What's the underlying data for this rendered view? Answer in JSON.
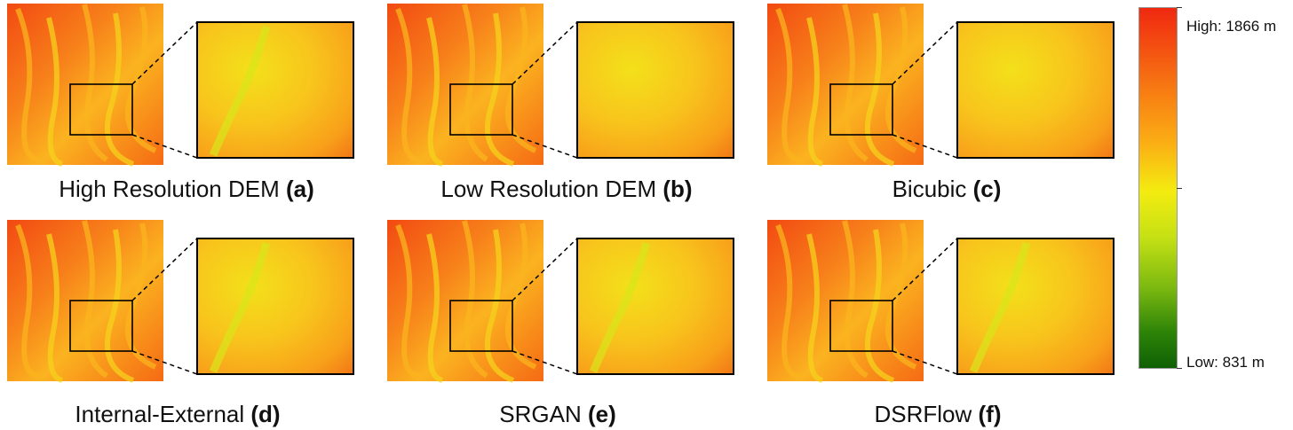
{
  "panels": [
    {
      "id": "a",
      "caption_text": "High Resolution DEM ",
      "caption_letter": "(a)"
    },
    {
      "id": "b",
      "caption_text": "Low Resolution DEM ",
      "caption_letter": "(b)"
    },
    {
      "id": "c",
      "caption_text": "Bicubic ",
      "caption_letter": "(c)"
    },
    {
      "id": "d",
      "caption_text": "Internal-External ",
      "caption_letter": "(d)"
    },
    {
      "id": "e",
      "caption_text": "SRGAN ",
      "caption_letter": "(e)"
    },
    {
      "id": "f",
      "caption_text": "DSRFlow ",
      "caption_letter": "(f)"
    }
  ],
  "colorbar": {
    "high_label": "High: 1866 m",
    "low_label": "Low: 831 m",
    "colors": [
      "#f02810",
      "#f77812",
      "#fbb014",
      "#f3ec10",
      "#c4e014",
      "#7ab810",
      "#2e8408",
      "#0f6004"
    ]
  }
}
